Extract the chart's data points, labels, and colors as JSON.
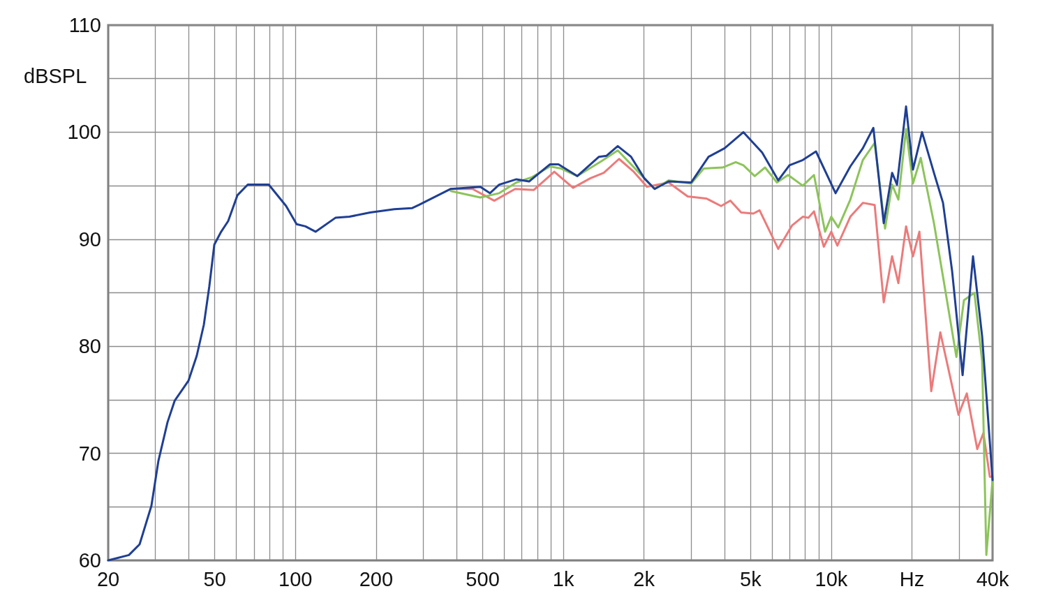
{
  "chart_data": {
    "type": "line",
    "ylabel": "dBSPL",
    "log": "x",
    "grid": true,
    "marker": "none",
    "line_style": "solid",
    "xlim": [
      20,
      40000
    ],
    "ylim": [
      60,
      110
    ],
    "xticks": [
      20,
      {
        "value": 30,
        "label": null
      },
      {
        "value": 40,
        "label": null
      },
      50,
      {
        "value": 60,
        "label": null
      },
      {
        "value": 70,
        "label": null
      },
      {
        "value": 80,
        "label": null
      },
      {
        "value": 90,
        "label": null
      },
      100,
      200,
      {
        "value": 300,
        "label": null
      },
      {
        "value": 400,
        "label": null
      },
      500,
      {
        "value": 600,
        "label": null
      },
      {
        "value": 700,
        "label": null
      },
      {
        "value": 800,
        "label": null
      },
      {
        "value": 900,
        "label": null
      },
      {
        "value": 1000,
        "label": "1k"
      },
      {
        "value": 2000,
        "label": "2k"
      },
      {
        "value": 3000,
        "label": null
      },
      {
        "value": 4000,
        "label": null
      },
      {
        "value": 5000,
        "label": "5k"
      },
      {
        "value": 6000,
        "label": null
      },
      {
        "value": 7000,
        "label": null
      },
      {
        "value": 8000,
        "label": null
      },
      {
        "value": 9000,
        "label": null
      },
      {
        "value": 10000,
        "label": "10k"
      },
      {
        "value": 20000,
        "label": "Hz"
      },
      {
        "value": 30000,
        "label": null
      },
      {
        "value": 40000,
        "label": "40k"
      }
    ],
    "yticks": [
      60,
      {
        "value": 65,
        "label": null
      },
      70,
      {
        "value": 75,
        "label": null
      },
      80,
      {
        "value": 85,
        "label": null
      },
      90,
      {
        "value": 95,
        "label": null
      },
      100,
      {
        "value": 105,
        "label": null
      },
      110
    ],
    "series": [
      {
        "color": "#ec7a7a",
        "x": [
          380,
          458,
          552,
          661,
          776,
          925,
          1087,
          1262,
          1416,
          1614,
          1832,
          2052,
          2471,
          2911,
          3420,
          3880,
          4200,
          4610,
          5120,
          5400,
          6340,
          7150,
          7830,
          8210,
          8620,
          9380,
          10000,
          10540,
          11780,
          13120,
          14520,
          15700,
          16870,
          17800,
          19020,
          20180,
          21330,
          23620,
          25530,
          29850,
          32060,
          35070,
          36980,
          39080,
          40000
        ],
        "values": [
          94.7,
          94.7,
          93.6,
          94.7,
          94.6,
          96.3,
          94.8,
          95.7,
          96.2,
          97.5,
          96.3,
          94.9,
          95.3,
          94.0,
          93.8,
          93.1,
          93.6,
          92.5,
          92.4,
          92.7,
          89.1,
          91.3,
          92.1,
          92.0,
          92.6,
          89.3,
          90.7,
          89.4,
          92.1,
          93.4,
          93.2,
          84.1,
          88.4,
          85.9,
          91.2,
          88.4,
          90.7,
          75.8,
          81.3,
          73.6,
          75.6,
          70.4,
          71.9,
          67.8,
          67.8
        ]
      },
      {
        "color": "#8cc45a",
        "x": [
          380,
          490,
          576,
          668,
          764,
          892,
          982,
          1127,
          1390,
          1596,
          2004,
          2192,
          2471,
          3000,
          3340,
          3930,
          4400,
          4700,
          5180,
          5660,
          6270,
          6900,
          7830,
          8620,
          9480,
          10000,
          10620,
          11780,
          13120,
          14520,
          15880,
          16870,
          17800,
          19020,
          20180,
          21580,
          24170,
          26130,
          29320,
          31280,
          34220,
          36580,
          37920,
          40000
        ],
        "values": [
          94.5,
          93.9,
          94.3,
          95.3,
          95.8,
          96.8,
          96.6,
          95.9,
          97.3,
          98.3,
          95.7,
          94.7,
          95.5,
          95.2,
          96.6,
          96.7,
          97.2,
          96.9,
          95.9,
          96.7,
          95.3,
          96.0,
          95.0,
          96.0,
          90.7,
          92.1,
          91.1,
          93.7,
          97.4,
          99.0,
          91.0,
          95.1,
          93.7,
          100.3,
          95.2,
          97.6,
          91.5,
          86.5,
          79.0,
          84.3,
          85.0,
          78.6,
          60.5,
          67.5
        ]
      },
      {
        "color": "#1f3f94",
        "x": [
          20,
          23.9,
          26.2,
          29.0,
          30.8,
          33.3,
          35.4,
          39.9,
          42.8,
          45.5,
          47.7,
          49.8,
          52.8,
          56.1,
          60.7,
          66.4,
          79.5,
          92.3,
          101,
          109,
          119,
          141,
          159,
          190,
          234,
          272,
          289,
          380,
          490,
          532,
          576,
          668,
          745,
          892,
          959,
          1127,
          1358,
          1450,
          1596,
          1790,
          2004,
          2192,
          2471,
          3000,
          3484,
          4000,
          4700,
          5520,
          6340,
          6980,
          7830,
          8770,
          10380,
          11780,
          13120,
          14360,
          15700,
          16870,
          17600,
          19020,
          20180,
          21820,
          24170,
          26130,
          28260,
          30920,
          33820,
          36580,
          40000
        ],
        "values": [
          60.0,
          60.5,
          61.5,
          65.1,
          69.3,
          72.9,
          74.9,
          76.8,
          79.1,
          82.0,
          85.6,
          89.5,
          90.7,
          91.7,
          94.1,
          95.1,
          95.1,
          93.1,
          91.4,
          91.2,
          90.7,
          92.0,
          92.1,
          92.5,
          92.8,
          92.9,
          93.2,
          94.7,
          94.9,
          94.3,
          95.1,
          95.6,
          95.4,
          97.0,
          97.0,
          95.9,
          97.7,
          97.8,
          98.7,
          97.7,
          95.7,
          94.7,
          95.4,
          95.3,
          97.7,
          98.5,
          100.0,
          98.1,
          95.5,
          96.9,
          97.4,
          98.2,
          94.3,
          96.8,
          98.5,
          100.4,
          91.5,
          96.2,
          95.1,
          102.4,
          96.5,
          100.0,
          96.2,
          93.4,
          87.0,
          77.3,
          88.4,
          80.9,
          67.5
        ]
      }
    ]
  }
}
